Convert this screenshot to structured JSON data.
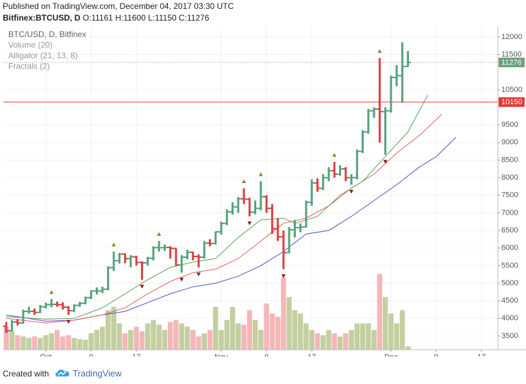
{
  "header": {
    "published": "Published on TradingView.com, December 04, 2017 03:30 UTC",
    "symbol": "Bitfinex:BTCUSD, D",
    "ohlc": "O:11161 H:11600 L:11150 C:11276"
  },
  "footer": {
    "created_with": "Created with",
    "brand": "TradingView"
  },
  "chart_data": {
    "type": "ohlc",
    "legend": [
      "BTC/USD, D, Bitfinex",
      "Volume (20)",
      "Alligator (21, 13, 8)",
      "Fractals (2)"
    ],
    "xlim": [
      -7.5,
      79.9
    ],
    "ylim": [
      3110,
      12310
    ],
    "xticks": [
      {
        "value": 0,
        "label": "Oct"
      },
      {
        "value": 8,
        "label": "9"
      },
      {
        "value": 16,
        "label": "17"
      },
      {
        "value": 31,
        "label": "Nov"
      },
      {
        "value": 39,
        "label": "9"
      },
      {
        "value": 47,
        "label": "17"
      },
      {
        "value": 61,
        "label": "Dec"
      },
      {
        "value": 69,
        "label": "9"
      },
      {
        "value": 77,
        "label": "17"
      }
    ],
    "yticks": [
      3500,
      4000,
      4500,
      5000,
      5500,
      6000,
      6500,
      7000,
      7500,
      8000,
      8500,
      9000,
      9500,
      10500,
      11500,
      12000
    ],
    "grid": true,
    "up_color": "#53a27b",
    "down_color": "#d94040",
    "volume_up_color": "#c3cfa0",
    "volume_down_color": "#f4b7b7",
    "fractal_up_color": "#8b8b1e",
    "fractal_down_color": "#8b1e1e",
    "x": [
      -7,
      -6,
      -5,
      -4,
      -3,
      -2,
      -1,
      0,
      1,
      2,
      3,
      4,
      5,
      6,
      7,
      8,
      9,
      10,
      11,
      12,
      13,
      14,
      15,
      16,
      17,
      18,
      19,
      20,
      21,
      22,
      23,
      24,
      25,
      26,
      27,
      28,
      29,
      30,
      31,
      32,
      33,
      34,
      35,
      36,
      37,
      38,
      39,
      40,
      41,
      42,
      43,
      44,
      45,
      46,
      47,
      48,
      49,
      50,
      51,
      52,
      53,
      54,
      55,
      56,
      57,
      58,
      59,
      60,
      61,
      62,
      63,
      64
    ],
    "open": [
      3780,
      3650,
      3900,
      3870,
      4200,
      4200,
      4170,
      4330,
      4390,
      4400,
      4390,
      4320,
      4220,
      4370,
      4430,
      4590,
      4780,
      4780,
      4830,
      5440,
      5640,
      5830,
      5700,
      5750,
      5590,
      5580,
      5710,
      6010,
      6010,
      6020,
      5990,
      5520,
      5740,
      5880,
      5760,
      5740,
      6140,
      6130,
      6460,
      6700,
      7030,
      7170,
      7400,
      7390,
      7020,
      7130,
      7460,
      7130,
      6550,
      6320,
      5870,
      6520,
      6580,
      6600,
      7300,
      7850,
      7700,
      8000,
      8200,
      8100,
      8250,
      8000,
      8000,
      8750,
      9300,
      9900,
      9950,
      9880,
      9900,
      10850,
      10900,
      11161
    ],
    "high": [
      3900,
      3950,
      3980,
      4250,
      4330,
      4280,
      4380,
      4450,
      4550,
      4480,
      4460,
      4350,
      4400,
      4470,
      4620,
      4800,
      4880,
      4900,
      5480,
      5900,
      5860,
      5850,
      5800,
      5780,
      5620,
      5750,
      6050,
      6200,
      6100,
      6050,
      6000,
      5800,
      5950,
      5900,
      5820,
      6200,
      6250,
      6470,
      6750,
      7100,
      7300,
      7450,
      7700,
      7430,
      7350,
      7900,
      7500,
      7250,
      6850,
      6500,
      6600,
      6800,
      6700,
      7350,
      7950,
      7980,
      8100,
      8300,
      8450,
      8350,
      8300,
      8100,
      8800,
      9350,
      9950,
      10000,
      11400,
      10000,
      10900,
      11200,
      11850,
      11600
    ],
    "low": [
      3580,
      3620,
      3800,
      3850,
      4130,
      4100,
      4150,
      4280,
      4320,
      4330,
      4250,
      4100,
      4180,
      4330,
      4400,
      4550,
      4680,
      4720,
      4800,
      5350,
      5560,
      5570,
      5450,
      5500,
      5100,
      5500,
      5650,
      5900,
      5920,
      5700,
      5500,
      5300,
      5680,
      5650,
      5450,
      5700,
      6050,
      6100,
      6380,
      6650,
      6950,
      7000,
      7250,
      6900,
      6960,
      7070,
      7000,
      6400,
      6200,
      5400,
      5850,
      6300,
      6450,
      6580,
      7200,
      7600,
      7650,
      7900,
      8000,
      8050,
      7900,
      7800,
      7950,
      8700,
      9250,
      9700,
      9000,
      8650,
      9850,
      10600,
      10130,
      11150
    ],
    "close": [
      3650,
      3900,
      3870,
      4200,
      4200,
      4170,
      4330,
      4390,
      4400,
      4390,
      4320,
      4220,
      4370,
      4430,
      4590,
      4780,
      4780,
      4830,
      5440,
      5640,
      5830,
      5700,
      5750,
      5590,
      5580,
      5710,
      6010,
      6010,
      6020,
      5990,
      5520,
      5740,
      5880,
      5760,
      5740,
      6140,
      6130,
      6460,
      6700,
      7030,
      7170,
      7400,
      7390,
      7020,
      7130,
      7460,
      7130,
      6550,
      6320,
      5870,
      6520,
      6580,
      6600,
      7300,
      7850,
      7700,
      8000,
      8200,
      8100,
      8250,
      8000,
      8000,
      8750,
      9300,
      9900,
      9950,
      9880,
      9900,
      10850,
      10900,
      11161,
      11276
    ],
    "volume": [
      35,
      28,
      22,
      20,
      18,
      20,
      18,
      22,
      25,
      30,
      20,
      22,
      18,
      16,
      15,
      25,
      30,
      35,
      60,
      65,
      40,
      25,
      30,
      35,
      28,
      40,
      45,
      38,
      30,
      42,
      45,
      40,
      35,
      30,
      20,
      25,
      30,
      65,
      30,
      45,
      65,
      40,
      38,
      60,
      45,
      30,
      70,
      55,
      50,
      110,
      80,
      60,
      55,
      40,
      30,
      25,
      22,
      30,
      25,
      20,
      25,
      30,
      40,
      40,
      40,
      30,
      115,
      80,
      55,
      40,
      60,
      5
    ],
    "fractals_up": [
      1,
      12,
      20,
      35,
      38,
      51,
      59
    ],
    "fractals_down": [
      4,
      17,
      24,
      27,
      36,
      42,
      54,
      60
    ],
    "lines": [
      {
        "color": "#4b50d0",
        "x": [
          -7,
          0,
          5,
          10,
          14,
          18,
          22,
          26,
          30,
          34,
          38,
          42,
          46,
          50,
          54,
          58,
          62,
          66,
          69,
          72.5
        ],
        "values": [
          4100,
          3920,
          3950,
          4100,
          4200,
          4450,
          4700,
          4900,
          5000,
          5200,
          5500,
          5900,
          6400,
          6500,
          6900,
          7350,
          7800,
          8300,
          8600,
          9150
        ]
      },
      {
        "color": "#e26060",
        "x": [
          -7,
          0,
          5,
          10,
          14,
          18,
          22,
          26,
          30,
          34,
          38,
          42,
          46,
          50,
          54,
          58,
          62,
          66,
          70
        ],
        "values": [
          4000,
          3870,
          3950,
          4100,
          4300,
          4700,
          5050,
          5300,
          5400,
          5700,
          6200,
          6700,
          6850,
          7200,
          7700,
          8100,
          8700,
          9200,
          9800
        ]
      },
      {
        "color": "#5aa45a",
        "x": [
          -7,
          0,
          5,
          10,
          14,
          18,
          22,
          26,
          30,
          34,
          38,
          42,
          44,
          48,
          52,
          56,
          60,
          64,
          67.5
        ],
        "values": [
          4050,
          3980,
          4000,
          4300,
          4700,
          5100,
          5450,
          5600,
          5700,
          6300,
          6800,
          6850,
          6700,
          6900,
          7500,
          7900,
          8600,
          9300,
          10350
        ]
      }
    ],
    "hline": {
      "value": 10150,
      "color": "#e53935"
    },
    "last_price": {
      "value": 11276,
      "color": "#6a9f80"
    }
  }
}
